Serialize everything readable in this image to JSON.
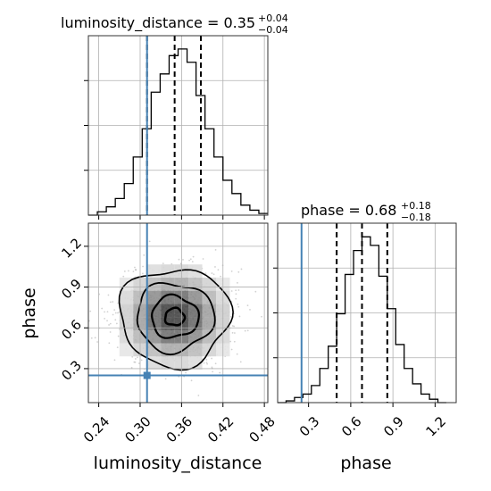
{
  "chart_data": {
    "type": "corner",
    "parameters": [
      "luminosity_distance",
      "phase"
    ],
    "truth": {
      "luminosity_distance": 0.31,
      "phase": 0.25
    },
    "colors": {
      "truth": "#4682b4",
      "hist": "#000000",
      "grid": "#b0b0b0"
    },
    "grid": true,
    "panels": {
      "luminosity_distance": {
        "title": {
          "main": "luminosity_distance = 0.35",
          "plus": "+0.04",
          "minus": "−0.04"
        },
        "xlim": [
          0.225,
          0.485
        ],
        "ylim": [
          0,
          1.08
        ],
        "quantiles": [
          0.31,
          0.35,
          0.388
        ],
        "bins": [
          0.225,
          0.238,
          0.251,
          0.264,
          0.277,
          0.29,
          0.303,
          0.316,
          0.329,
          0.342,
          0.355,
          0.368,
          0.381,
          0.394,
          0.407,
          0.42,
          0.433,
          0.446,
          0.459,
          0.472,
          0.485
        ],
        "counts": [
          0.0,
          0.02,
          0.05,
          0.1,
          0.19,
          0.35,
          0.52,
          0.74,
          0.85,
          0.96,
          1.0,
          0.92,
          0.72,
          0.52,
          0.35,
          0.21,
          0.13,
          0.06,
          0.03,
          0.01
        ]
      },
      "phase": {
        "title": {
          "main": "phase = 0.68",
          "plus": "+0.18",
          "minus": "−0.18"
        },
        "xlim": [
          0.08,
          1.35
        ],
        "ylim": [
          0,
          1.05
        ],
        "quantiles": [
          0.5,
          0.68,
          0.86
        ],
        "bins": [
          0.08,
          0.14,
          0.2,
          0.26,
          0.32,
          0.38,
          0.44,
          0.5,
          0.56,
          0.62,
          0.68,
          0.74,
          0.8,
          0.86,
          0.92,
          0.98,
          1.04,
          1.1,
          1.16,
          1.22,
          1.28
        ],
        "counts": [
          0.0,
          0.01,
          0.03,
          0.05,
          0.1,
          0.2,
          0.33,
          0.52,
          0.75,
          0.89,
          0.97,
          0.92,
          0.74,
          0.55,
          0.34,
          0.2,
          0.11,
          0.05,
          0.02,
          0.0
        ]
      },
      "joint": {
        "xlim": [
          0.225,
          0.485
        ],
        "ylim": [
          0.05,
          1.37
        ],
        "center": [
          0.35,
          0.68
        ],
        "spread": [
          0.04,
          0.18
        ]
      }
    },
    "xticks": {
      "luminosity_distance": [
        "0.24",
        "0.30",
        "0.36",
        "0.42",
        "0.48"
      ],
      "phase": [
        "0.3",
        "0.6",
        "0.9",
        "1.2"
      ]
    },
    "yticks": {
      "phase": [
        "0.3",
        "0.6",
        "0.9",
        "1.2"
      ]
    },
    "xlabel": {
      "luminosity_distance": "luminosity_distance",
      "phase": "phase"
    },
    "ylabel": {
      "phase": "phase"
    }
  }
}
